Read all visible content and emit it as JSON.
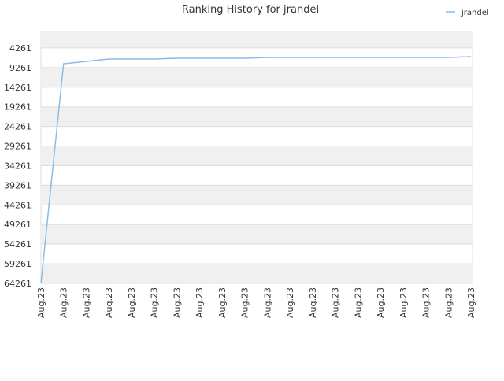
{
  "chart_data": {
    "type": "line",
    "title": "Ranking History for jrandel",
    "categories": [
      "Aug.23",
      "Aug.23",
      "Aug.23",
      "Aug.23",
      "Aug.23",
      "Aug.23",
      "Aug.23",
      "Aug.23",
      "Aug.23",
      "Aug.23",
      "Aug.23",
      "Aug.23",
      "Aug.23",
      "Aug.23",
      "Aug.23",
      "Aug.23",
      "Aug.23",
      "Aug.23",
      "Aug.23",
      "Aug.23"
    ],
    "series": [
      {
        "name": "jrandel",
        "color": "#8cbbe8",
        "values": [
          64261,
          8286,
          7684,
          7082,
          7082,
          7082,
          6881,
          6881,
          6881,
          6881,
          6681,
          6681,
          6681,
          6681,
          6681,
          6681,
          6681,
          6681,
          6681,
          6480
        ]
      }
    ],
    "ylim": [
      64261,
      61
    ],
    "yticks": [
      4261,
      9261,
      14261,
      19261,
      24261,
      29261,
      34261,
      39261,
      44261,
      49261,
      54261,
      59261,
      64261
    ],
    "grid": true,
    "legend": "top-right"
  }
}
